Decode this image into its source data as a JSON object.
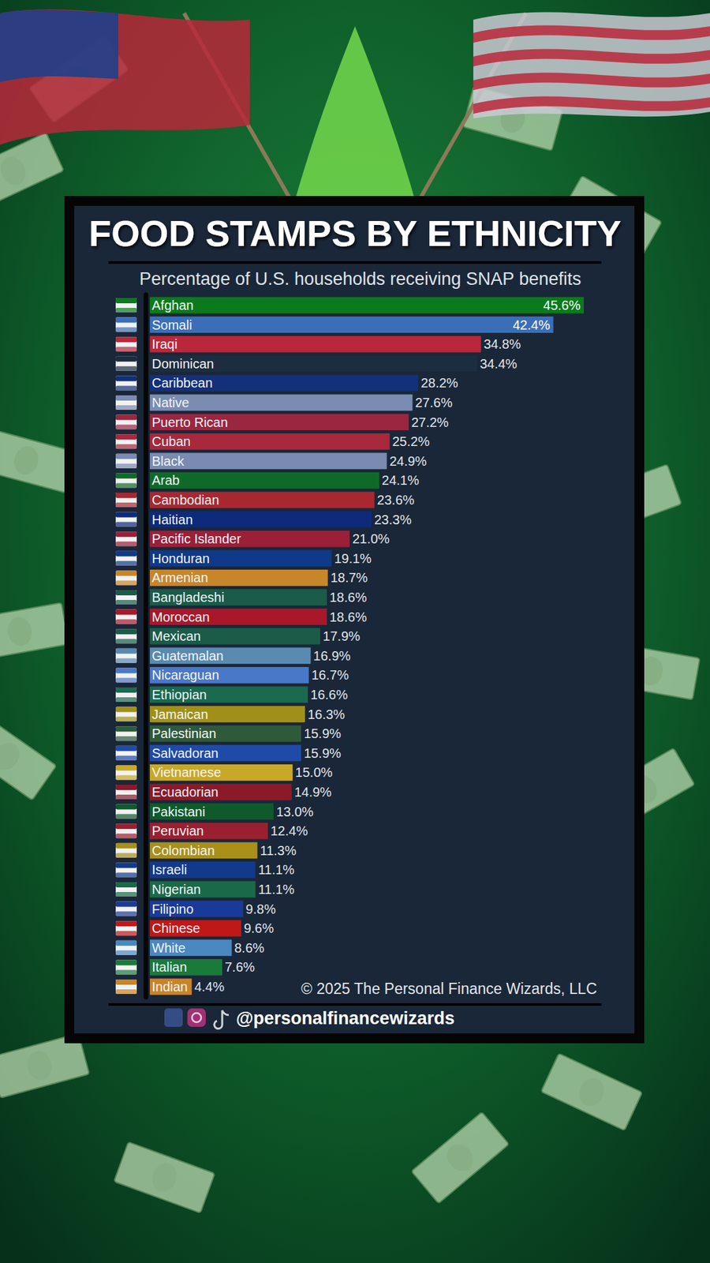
{
  "chart_data": {
    "type": "bar",
    "orientation": "horizontal",
    "title": "FOOD STAMPS BY ETHNICITY",
    "subtitle": "Percentage of U.S. households receiving SNAP benefits",
    "footer": "© 2025 The Personal Finance Wizards, LLC",
    "handle": "@personalfinancewizards",
    "data_labels": true,
    "categories": [
      "Afghan",
      "Somali",
      "Iraqi",
      "Dominican",
      "Caribbean",
      "Native",
      "Puerto Rican",
      "Cuban",
      "Black",
      "Arab",
      "Cambodian",
      "Haitian",
      "Pacific Islander",
      "Honduran",
      "Armenian",
      "Bangladeshi",
      "Moroccan",
      "Mexican",
      "Guatemalan",
      "Nicaraguan",
      "Ethiopian",
      "Jamaican",
      "Palestinian",
      "Salvadoran",
      "Vietnamese",
      "Ecuadorian",
      "Pakistani",
      "Peruvian",
      "Colombian",
      "Israeli",
      "Nigerian",
      "Filipino",
      "Chinese",
      "White",
      "Italian",
      "Indian"
    ],
    "values": [
      45.6,
      42.4,
      34.8,
      34.4,
      28.2,
      27.6,
      27.2,
      25.2,
      24.9,
      24.1,
      23.6,
      23.3,
      21.0,
      19.1,
      18.7,
      18.6,
      18.6,
      17.9,
      16.9,
      16.7,
      16.6,
      16.3,
      15.9,
      15.9,
      15.0,
      14.9,
      13.0,
      12.4,
      11.3,
      11.1,
      11.1,
      9.8,
      9.6,
      8.6,
      7.6,
      4.4
    ],
    "value_labels": [
      "45.6%",
      "42.4%",
      "34.8%",
      "34.4%",
      "28.2%",
      "27.6%",
      "27.2%",
      "25.2%",
      "24.9%",
      "24.1%",
      "23.6%",
      "23.3%",
      "21.0%",
      "19.1%",
      "18.7%",
      "18.6%",
      "18.6%",
      "17.9%",
      "16.9%",
      "16.7%",
      "16.6%",
      "16.3%",
      "15.9%",
      "15.9%",
      "15.0%",
      "14.9%",
      "13.0%",
      "12.4%",
      "11.3%",
      "11.1%",
      "11.1%",
      "9.8%",
      "9.6%",
      "8.6%",
      "7.6%",
      "4.4%"
    ],
    "colors": [
      "#0b7a1c",
      "#3a6fb8",
      "#b8283a",
      "#1d2d40",
      "#13307a",
      "#7a8cb2",
      "#9a2640",
      "#a8283c",
      "#7a8ab0",
      "#0f6a2a",
      "#a82830",
      "#0e2a7a",
      "#9a2038",
      "#0f3a8a",
      "#c7862a",
      "#1a5c48",
      "#a8182a",
      "#1a5c48",
      "#5a8ab0",
      "#4a78c8",
      "#1a6a50",
      "#a0901a",
      "#2e5a3a",
      "#1f4aa8",
      "#c8a828",
      "#8a1a2a",
      "#0e5a2a",
      "#9a2030",
      "#a8901a",
      "#123a8a",
      "#1a6a48",
      "#1a3a9a",
      "#c01818",
      "#4a88c0",
      "#1a7a3a",
      "#c8842a"
    ]
  }
}
